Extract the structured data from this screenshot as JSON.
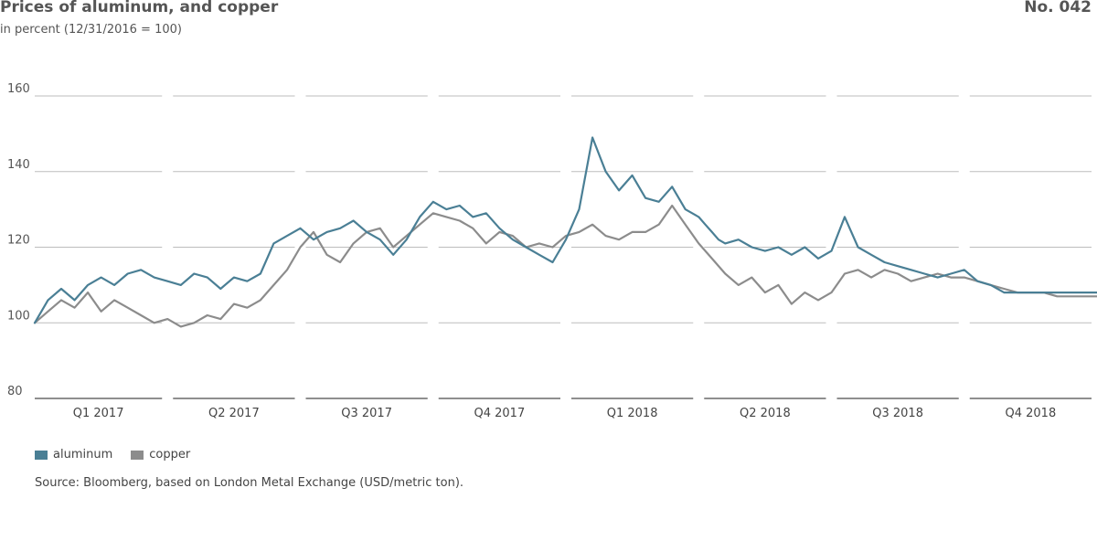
{
  "header": {
    "title": "Prices of aluminum, and copper",
    "number": "No. 042",
    "subtitle": "in percent (12/31/2016 = 100)"
  },
  "legend": {
    "aluminum": "aluminum",
    "copper": "copper"
  },
  "source": "Source: Bloomberg, based on London Metal Exchange (USD/metric ton).",
  "colors": {
    "aluminum": "#4a7f95",
    "copper": "#8c8c8c",
    "grid": "#bdbdbd",
    "axis": "#8f8f8f"
  },
  "chart_data": {
    "type": "line",
    "title": "Prices of aluminum, and copper",
    "ylabel": "in percent (12/31/2016 = 100)",
    "ylim": [
      80,
      160
    ],
    "yticks": [
      80,
      100,
      120,
      140,
      160
    ],
    "grid": true,
    "legend_position": "bottom-left",
    "categories": [
      "Q1 2017",
      "Q2 2017",
      "Q3 2017",
      "Q4 2017",
      "Q1 2018",
      "Q2 2018",
      "Q3 2018",
      "Q4 2018"
    ],
    "series": [
      {
        "name": "aluminum",
        "x": [
          0.0,
          0.1,
          0.2,
          0.3,
          0.4,
          0.5,
          0.6,
          0.7,
          0.8,
          0.9,
          1.0,
          1.1,
          1.2,
          1.3,
          1.4,
          1.5,
          1.6,
          1.7,
          1.8,
          1.9,
          2.0,
          2.1,
          2.2,
          2.3,
          2.4,
          2.5,
          2.6,
          2.7,
          2.8,
          2.9,
          3.0,
          3.1,
          3.2,
          3.3,
          3.4,
          3.5,
          3.6,
          3.7,
          3.8,
          3.9,
          4.0,
          4.1,
          4.2,
          4.3,
          4.4,
          4.5,
          4.6,
          4.7,
          4.8,
          4.9,
          5.0,
          5.05,
          5.1,
          5.15,
          5.2,
          5.3,
          5.4,
          5.5,
          5.6,
          5.7,
          5.8,
          5.9,
          6.0,
          6.1,
          6.2,
          6.3,
          6.4,
          6.5,
          6.6,
          6.7,
          6.8,
          6.9,
          7.0,
          7.1,
          7.2,
          7.3,
          7.4,
          7.5,
          7.6,
          7.7,
          7.8,
          7.9,
          8.0
        ],
        "values": [
          100,
          106,
          109,
          106,
          110,
          112,
          110,
          113,
          114,
          112,
          111,
          110,
          113,
          112,
          109,
          112,
          111,
          113,
          121,
          123,
          125,
          122,
          124,
          125,
          127,
          124,
          122,
          118,
          122,
          128,
          132,
          130,
          131,
          128,
          129,
          125,
          122,
          120,
          118,
          116,
          122,
          130,
          149,
          140,
          135,
          139,
          133,
          132,
          136,
          130,
          128,
          126,
          124,
          122,
          121,
          122,
          120,
          119,
          120,
          118,
          120,
          117,
          119,
          128,
          120,
          118,
          116,
          115,
          114,
          113,
          112,
          113,
          114,
          111,
          110,
          108,
          108,
          108,
          108,
          108,
          108,
          108,
          108
        ]
      },
      {
        "name": "copper",
        "x": [
          0.0,
          0.1,
          0.2,
          0.3,
          0.4,
          0.5,
          0.6,
          0.7,
          0.8,
          0.9,
          1.0,
          1.1,
          1.2,
          1.3,
          1.4,
          1.5,
          1.6,
          1.7,
          1.8,
          1.9,
          2.0,
          2.1,
          2.2,
          2.3,
          2.4,
          2.5,
          2.6,
          2.7,
          2.8,
          2.9,
          3.0,
          3.1,
          3.2,
          3.3,
          3.4,
          3.5,
          3.6,
          3.7,
          3.8,
          3.9,
          4.0,
          4.1,
          4.2,
          4.3,
          4.4,
          4.5,
          4.6,
          4.7,
          4.8,
          4.9,
          5.0,
          5.1,
          5.2,
          5.3,
          5.4,
          5.5,
          5.6,
          5.7,
          5.8,
          5.9,
          6.0,
          6.1,
          6.2,
          6.3,
          6.4,
          6.5,
          6.6,
          6.7,
          6.8,
          6.9,
          7.0,
          7.1,
          7.2,
          7.3,
          7.4,
          7.5,
          7.6,
          7.7,
          7.8,
          7.9,
          8.0
        ],
        "values": [
          100,
          103,
          106,
          104,
          108,
          103,
          106,
          104,
          102,
          100,
          101,
          99,
          100,
          102,
          101,
          105,
          104,
          106,
          110,
          114,
          120,
          124,
          118,
          116,
          121,
          124,
          125,
          120,
          123,
          126,
          129,
          128,
          127,
          125,
          121,
          124,
          123,
          120,
          121,
          120,
          123,
          124,
          126,
          123,
          122,
          124,
          124,
          126,
          131,
          126,
          121,
          117,
          113,
          110,
          112,
          108,
          110,
          105,
          108,
          106,
          108,
          113,
          114,
          112,
          114,
          113,
          111,
          112,
          113,
          112,
          112,
          111,
          110,
          109,
          108,
          108,
          108,
          107,
          107,
          107,
          107
        ]
      }
    ]
  }
}
